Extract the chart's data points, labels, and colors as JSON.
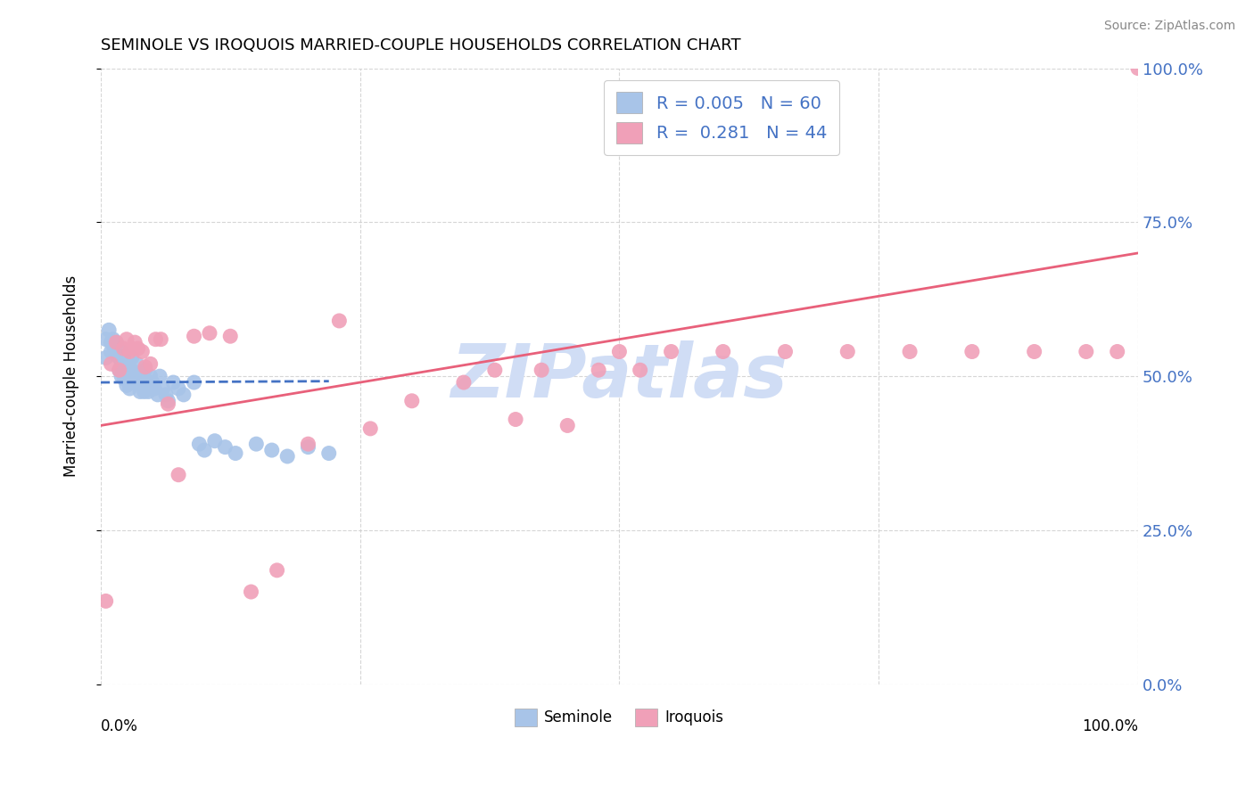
{
  "title": "SEMINOLE VS IROQUOIS MARRIED-COUPLE HOUSEHOLDS CORRELATION CHART",
  "source": "Source: ZipAtlas.com",
  "ylabel": "Married-couple Households",
  "ytick_labels": [
    "0.0%",
    "25.0%",
    "50.0%",
    "75.0%",
    "100.0%"
  ],
  "ytick_values": [
    0.0,
    0.25,
    0.5,
    0.75,
    1.0
  ],
  "xtick_labels": [
    "0.0%",
    "",
    "",
    "",
    "100.0%"
  ],
  "xtick_values": [
    0.0,
    0.25,
    0.5,
    0.75,
    1.0
  ],
  "xlim": [
    0.0,
    1.0
  ],
  "ylim": [
    0.0,
    1.0
  ],
  "seminole_color": "#a8c4e8",
  "iroquois_color": "#f0a0b8",
  "trendline_seminole_color": "#4472c4",
  "trendline_iroquois_color": "#e8607a",
  "background_color": "#ffffff",
  "grid_color": "#cccccc",
  "watermark": "ZIPatlas",
  "watermark_color": "#d0ddf5",
  "seminole_x": [
    0.005,
    0.005,
    0.008,
    0.01,
    0.01,
    0.012,
    0.013,
    0.015,
    0.015,
    0.018,
    0.018,
    0.02,
    0.02,
    0.02,
    0.022,
    0.022,
    0.023,
    0.025,
    0.025,
    0.025,
    0.027,
    0.028,
    0.028,
    0.03,
    0.03,
    0.03,
    0.032,
    0.033,
    0.035,
    0.035,
    0.037,
    0.038,
    0.04,
    0.04,
    0.042,
    0.043,
    0.045,
    0.046,
    0.048,
    0.05,
    0.052,
    0.055,
    0.057,
    0.06,
    0.063,
    0.065,
    0.07,
    0.075,
    0.08,
    0.09,
    0.095,
    0.1,
    0.11,
    0.12,
    0.13,
    0.15,
    0.165,
    0.18,
    0.2,
    0.22
  ],
  "seminole_y": [
    0.56,
    0.53,
    0.575,
    0.555,
    0.54,
    0.56,
    0.545,
    0.555,
    0.535,
    0.53,
    0.51,
    0.54,
    0.52,
    0.5,
    0.53,
    0.51,
    0.495,
    0.52,
    0.505,
    0.485,
    0.51,
    0.495,
    0.48,
    0.53,
    0.51,
    0.49,
    0.505,
    0.49,
    0.52,
    0.5,
    0.49,
    0.475,
    0.505,
    0.49,
    0.475,
    0.51,
    0.49,
    0.475,
    0.5,
    0.49,
    0.48,
    0.47,
    0.5,
    0.48,
    0.47,
    0.46,
    0.49,
    0.48,
    0.47,
    0.49,
    0.39,
    0.38,
    0.395,
    0.385,
    0.375,
    0.39,
    0.38,
    0.37,
    0.385,
    0.375
  ],
  "iroquois_x": [
    0.005,
    0.01,
    0.015,
    0.018,
    0.022,
    0.025,
    0.028,
    0.03,
    0.033,
    0.036,
    0.04,
    0.043,
    0.048,
    0.053,
    0.058,
    0.065,
    0.075,
    0.09,
    0.105,
    0.125,
    0.145,
    0.17,
    0.2,
    0.23,
    0.26,
    0.3,
    0.35,
    0.4,
    0.45,
    0.5,
    0.55,
    0.6,
    0.66,
    0.72,
    0.78,
    0.84,
    0.9,
    0.95,
    0.98,
    1.0,
    0.38,
    0.425,
    0.48,
    0.52
  ],
  "iroquois_y": [
    0.135,
    0.52,
    0.555,
    0.51,
    0.545,
    0.56,
    0.54,
    0.545,
    0.555,
    0.545,
    0.54,
    0.515,
    0.52,
    0.56,
    0.56,
    0.455,
    0.34,
    0.565,
    0.57,
    0.565,
    0.15,
    0.185,
    0.39,
    0.59,
    0.415,
    0.46,
    0.49,
    0.43,
    0.42,
    0.54,
    0.54,
    0.54,
    0.54,
    0.54,
    0.54,
    0.54,
    0.54,
    0.54,
    0.54,
    1.0,
    0.51,
    0.51,
    0.51,
    0.51
  ],
  "seminole_trendline_x": [
    0.0,
    0.22
  ],
  "seminole_trendline_y": [
    0.49,
    0.492
  ],
  "iroquois_trendline_x": [
    0.0,
    1.0
  ],
  "iroquois_trendline_y": [
    0.42,
    0.7
  ]
}
